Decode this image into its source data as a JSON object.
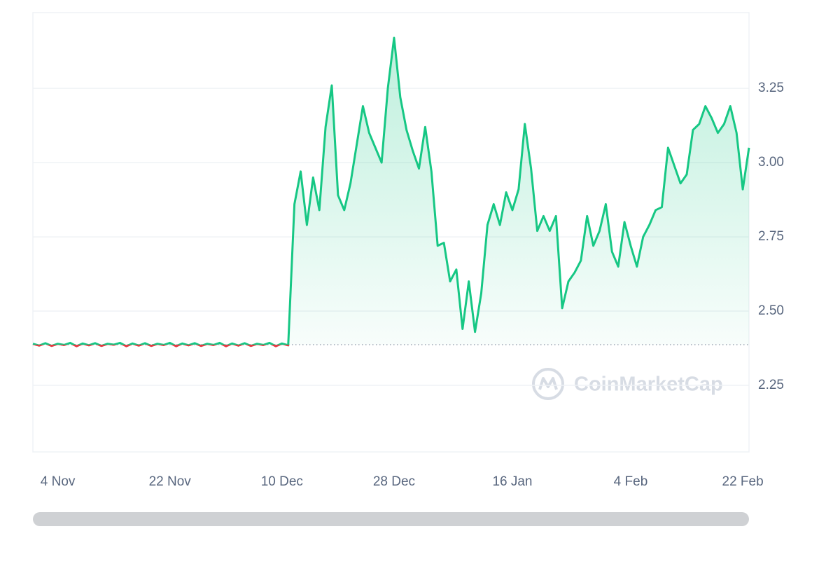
{
  "chart_data": {
    "type": "line",
    "watermark": "CoinMarketCap",
    "x": [
      0,
      1,
      2,
      3,
      4,
      5,
      6,
      7,
      8,
      9,
      10,
      11,
      12,
      13,
      14,
      15,
      16,
      17,
      18,
      19,
      20,
      21,
      22,
      23,
      24,
      25,
      26,
      27,
      28,
      29,
      30,
      31,
      32,
      33,
      34,
      35,
      36,
      37,
      38,
      39,
      40,
      41,
      42,
      43,
      44,
      45,
      46,
      47,
      48,
      49,
      50,
      51,
      52,
      53,
      54,
      55,
      56,
      57,
      58,
      59,
      60,
      61,
      62,
      63,
      64,
      65,
      66,
      67,
      68,
      69,
      70,
      71,
      72,
      73,
      74,
      75,
      76,
      77,
      78,
      79,
      80,
      81,
      82,
      83,
      84,
      85,
      86,
      87,
      88,
      89,
      90,
      91,
      92,
      93,
      94,
      95,
      96,
      97,
      98,
      99,
      100,
      101,
      102,
      103,
      104,
      105,
      106,
      107,
      108,
      109,
      110,
      111,
      112,
      113,
      114,
      115
    ],
    "series": [
      {
        "color": "#16c784",
        "values": [
          2.39,
          2.384,
          2.392,
          2.383,
          2.39,
          2.386,
          2.393,
          2.382,
          2.391,
          2.385,
          2.392,
          2.383,
          2.39,
          2.387,
          2.393,
          2.382,
          2.391,
          2.384,
          2.392,
          2.383,
          2.39,
          2.386,
          2.393,
          2.382,
          2.391,
          2.385,
          2.392,
          2.383,
          2.39,
          2.386,
          2.393,
          2.382,
          2.391,
          2.384,
          2.392,
          2.383,
          2.39,
          2.386,
          2.393,
          2.382,
          2.391,
          2.385,
          2.86,
          2.97,
          2.79,
          2.95,
          2.84,
          3.12,
          3.26,
          2.89,
          2.84,
          2.93,
          3.06,
          3.19,
          3.1,
          3.05,
          3.0,
          3.25,
          3.42,
          3.22,
          3.11,
          3.04,
          2.98,
          3.12,
          2.97,
          2.72,
          2.73,
          2.6,
          2.64,
          2.44,
          2.6,
          2.43,
          2.56,
          2.79,
          2.86,
          2.79,
          2.9,
          2.84,
          2.91,
          3.13,
          2.98,
          2.77,
          2.82,
          2.77,
          2.82,
          2.51,
          2.6,
          2.63,
          2.67,
          2.82,
          2.72,
          2.77,
          2.86,
          2.7,
          2.65,
          2.8,
          2.72,
          2.65,
          2.75,
          2.79,
          2.84,
          2.85,
          3.05,
          2.99,
          2.93,
          2.96,
          3.11,
          3.13,
          3.19,
          3.15,
          3.1,
          3.13,
          3.19,
          3.1,
          2.91,
          3.05
        ]
      }
    ],
    "down_color": "#ea3943",
    "baseline": 2.387,
    "xlim": [
      0,
      115
    ],
    "xticks": [
      {
        "value": 4,
        "label": "4 Nov"
      },
      {
        "value": 22,
        "label": "22 Nov"
      },
      {
        "value": 40,
        "label": "10 Dec"
      },
      {
        "value": 58,
        "label": "28 Dec"
      },
      {
        "value": 77,
        "label": "16 Jan"
      },
      {
        "value": 96,
        "label": "4 Feb"
      },
      {
        "value": 114,
        "label": "22 Feb"
      }
    ],
    "ylim": [
      2.026,
      3.505
    ],
    "yticks": [
      2.25,
      {
        "value": 2.5,
        "label": "2.50"
      },
      2.75,
      {
        "value": 3,
        "label": "3.00"
      },
      3.25
    ],
    "grid": true
  }
}
